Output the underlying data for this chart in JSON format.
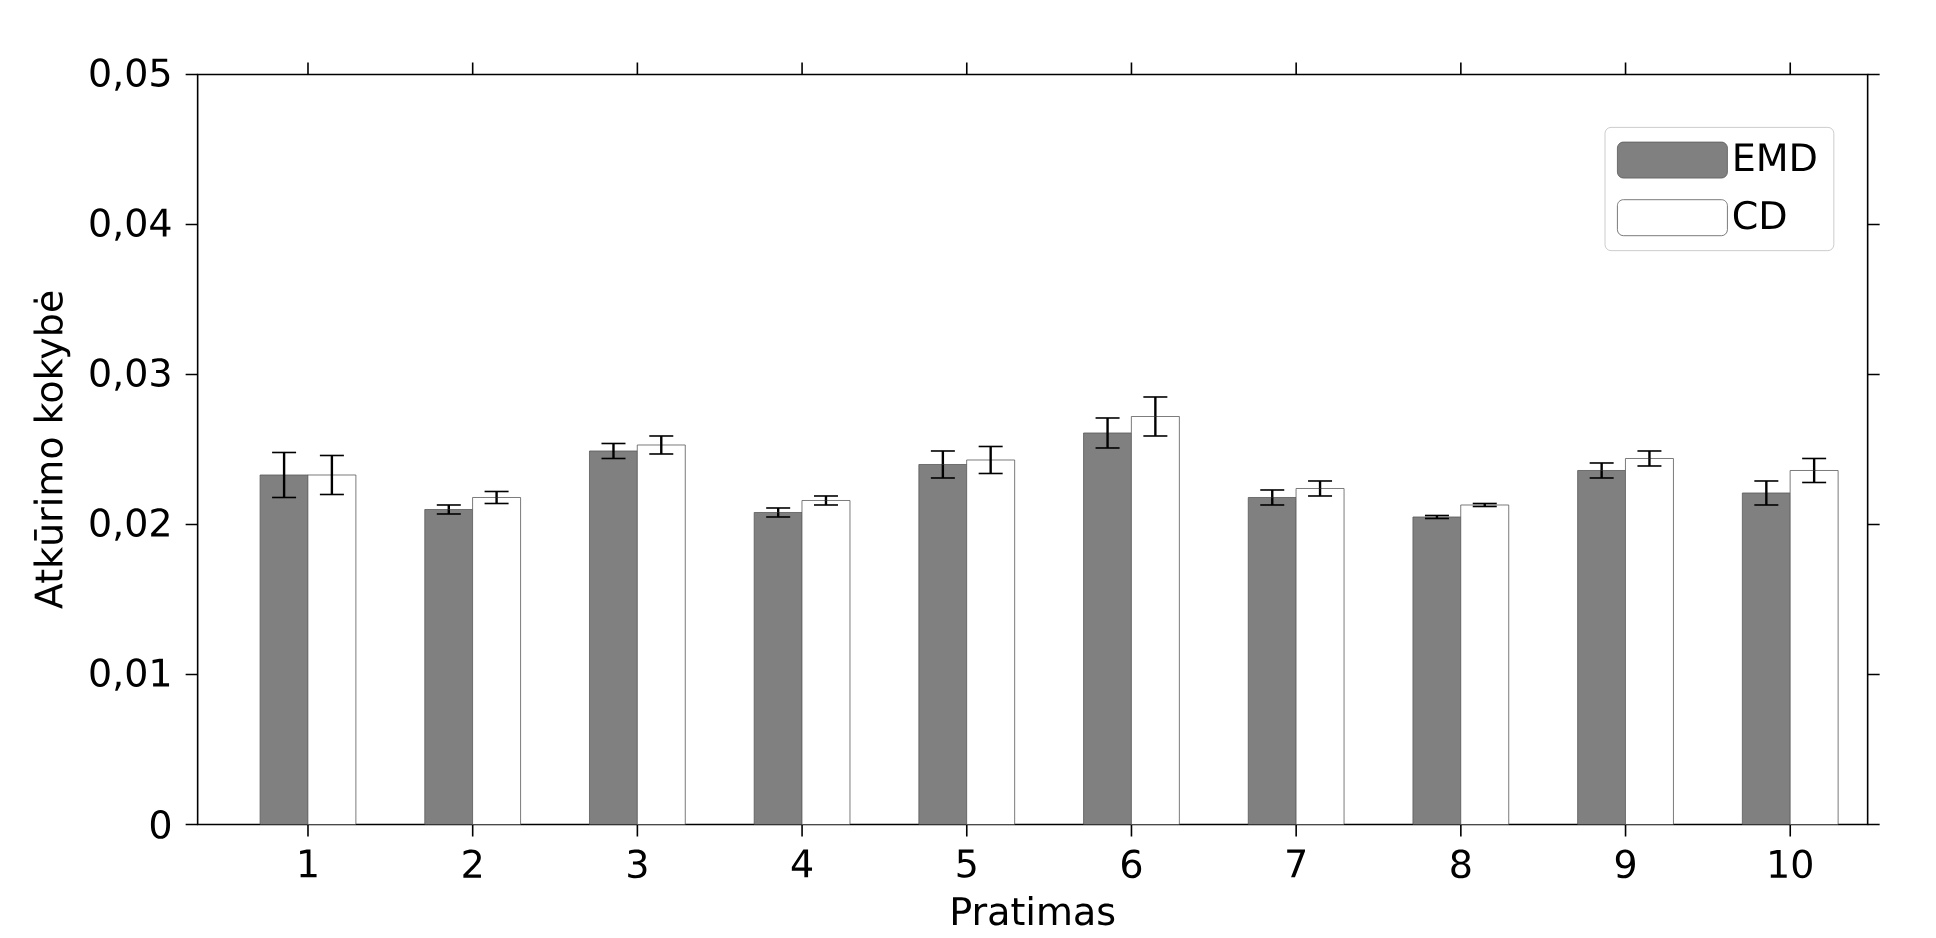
{
  "chart_data": {
    "type": "bar",
    "xlabel": "Pratimas",
    "ylabel": "Atkūrimo kokybė",
    "categories": [
      "1",
      "2",
      "3",
      "4",
      "5",
      "6",
      "7",
      "8",
      "9",
      "10"
    ],
    "series": [
      {
        "name": "EMD",
        "color": "#808080",
        "values": [
          0.0233,
          0.021,
          0.0249,
          0.0208,
          0.024,
          0.0261,
          0.0218,
          0.0205,
          0.0236,
          0.0221
        ],
        "errors": [
          0.0015,
          0.0003,
          0.0005,
          0.0003,
          0.0009,
          0.001,
          0.0005,
          0.0001,
          0.0005,
          0.0008
        ]
      },
      {
        "name": "CD",
        "color": "#ffffff",
        "values": [
          0.0233,
          0.0218,
          0.0253,
          0.0216,
          0.0243,
          0.0272,
          0.0224,
          0.0213,
          0.0244,
          0.0236
        ],
        "errors": [
          0.0013,
          0.0004,
          0.0006,
          0.0003,
          0.0009,
          0.0013,
          0.0005,
          0.0001,
          0.0005,
          0.0008
        ]
      }
    ],
    "ylim": [
      0,
      0.05
    ],
    "yticks": [
      0,
      {
        "value": 0.01,
        "label": "0,01"
      },
      {
        "value": 0.02,
        "label": "0,02"
      },
      {
        "value": 0.03,
        "label": "0,03"
      },
      {
        "value": 0.04,
        "label": "0,04"
      },
      {
        "value": 0.05,
        "label": "0,05"
      }
    ],
    "legend": "top right"
  }
}
